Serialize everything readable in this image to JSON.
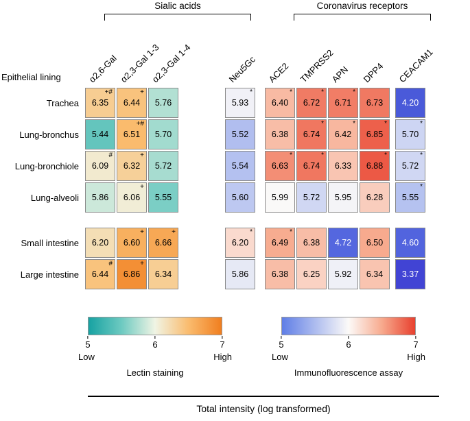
{
  "figure": {
    "row_header": "Epithelial lining",
    "bottom_axis_label": "Total intensity (log transformed)"
  },
  "chart_data": [
    {
      "type": "heatmap",
      "panel": "left",
      "title": "Sialic acids",
      "legend_title": "Lectin staining",
      "rows": [
        "Trachea",
        "Lung-bronchus",
        "Lung-bronchiole",
        "Lung-alveoli",
        "Small intestine",
        "Large intestine"
      ],
      "columns": [
        "α2,6-Gal",
        "α2,3-Gal 1-3",
        "α2,3-Gal 1-4"
      ],
      "values": [
        [
          6.35,
          6.44,
          5.76
        ],
        [
          5.44,
          6.51,
          5.7
        ],
        [
          6.09,
          6.32,
          5.72
        ],
        [
          5.86,
          6.06,
          5.55
        ],
        [
          6.2,
          6.6,
          6.66
        ],
        [
          6.44,
          6.86,
          6.34
        ]
      ],
      "annotations": [
        [
          "+#",
          "+",
          ""
        ],
        [
          "",
          "+#",
          ""
        ],
        [
          "#",
          "+",
          ""
        ],
        [
          "",
          "+",
          ""
        ],
        [
          "",
          "+",
          "+"
        ],
        [
          "#",
          "+",
          ""
        ]
      ],
      "scale": {
        "domain": [
          5,
          7
        ],
        "ticks": [
          "5",
          "6",
          "7"
        ],
        "low_label": "Low",
        "high_label": "High",
        "color_low": "#17a2a2",
        "color_mid": "#f0f4e4",
        "color_high": "#f07e1f"
      }
    },
    {
      "type": "heatmap",
      "panel": "right",
      "title": "Coronavirus receptors",
      "legend_title": "Immunofluorescence assay",
      "rows": [
        "Trachea",
        "Lung-bronchus",
        "Lung-bronchiole",
        "Lung-alveoli",
        "Small intestine",
        "Large intestine"
      ],
      "columns": [
        "Neu5Gc",
        "ACE2",
        "TMPRSS2",
        "APN",
        "DPP4",
        "CEACAM1"
      ],
      "values": [
        [
          5.93,
          6.4,
          6.72,
          6.71,
          6.73,
          4.2
        ],
        [
          5.52,
          6.38,
          6.74,
          6.42,
          6.85,
          5.7
        ],
        [
          5.54,
          6.63,
          6.74,
          6.33,
          6.88,
          5.72
        ],
        [
          5.6,
          5.99,
          5.72,
          5.95,
          6.28,
          5.55
        ],
        [
          6.2,
          6.49,
          6.38,
          4.72,
          6.5,
          4.6
        ],
        [
          5.86,
          6.38,
          6.25,
          5.92,
          6.34,
          3.37
        ]
      ],
      "annotations": [
        [
          "*",
          "*",
          "*",
          "*",
          "",
          ""
        ],
        [
          "",
          "",
          "*",
          "*",
          "*",
          "*"
        ],
        [
          "",
          "*",
          "*",
          "",
          "*",
          "*"
        ],
        [
          "",
          "",
          "",
          "",
          "",
          "*"
        ],
        [
          "*",
          "*",
          "",
          "",
          "",
          ""
        ],
        [
          "",
          "",
          "",
          "",
          "",
          ""
        ]
      ],
      "scale": {
        "domain": [
          5,
          7
        ],
        "ticks": [
          "5",
          "6",
          "7"
        ],
        "low_label": "Low",
        "high_label": "High",
        "color_low": "#5f7ee6",
        "color_mid": "#fcfaf8",
        "color_high": "#e8402e"
      }
    }
  ]
}
